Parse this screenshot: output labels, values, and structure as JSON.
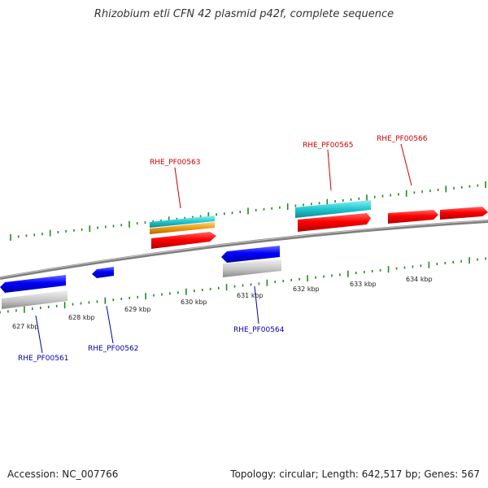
{
  "title": "Rhizobium etli CFN 42 plasmid p42f, complete sequence",
  "footer": {
    "accession": "Accession: NC_007766",
    "summary": "Topology: circular; Length: 642,517 bp; Genes: 567"
  },
  "colors": {
    "forward_gene": "#ff0000",
    "reverse_gene": "#0000ff",
    "rna_teal": "#1fc8d0",
    "rna_orange": "#f09a10",
    "pseudo_gray": "#bdbdbd",
    "tick": "#1f8a1f",
    "backbone": "#8a8a8a",
    "forward_label": "#cc0000",
    "reverse_label": "#0000aa"
  },
  "scale": {
    "unit": "kbp",
    "labels": [
      "627 kbp",
      "628 kbp",
      "629 kbp",
      "630 kbp",
      "631 kbp",
      "632 kbp",
      "633 kbp",
      "634 kbp"
    ]
  },
  "gene_labels": {
    "forward": [
      "RHE_PF00563",
      "RHE_PF00565",
      "RHE_PF00566"
    ],
    "reverse": [
      "RHE_PF00561",
      "RHE_PF00562",
      "RHE_PF00564"
    ]
  }
}
